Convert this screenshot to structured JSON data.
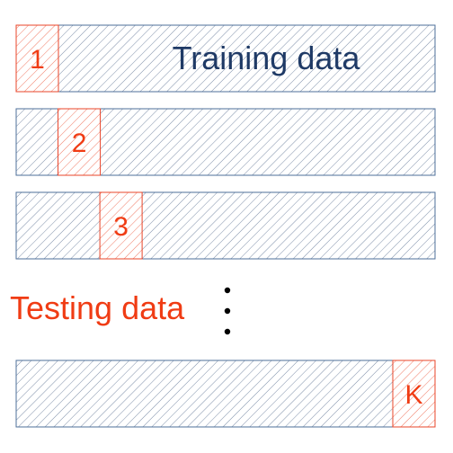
{
  "labels": {
    "training": "Training data",
    "testing": "Testing data"
  },
  "folds": [
    {
      "label": "1",
      "index": 0
    },
    {
      "label": "2",
      "index": 1
    },
    {
      "label": "3",
      "index": 2
    },
    {
      "label": "K",
      "index": 9
    }
  ],
  "ellipsis_dots": 3,
  "colors": {
    "train_stroke": "#4d6f99",
    "test_stroke": "#e8452a",
    "train_text": "#1f3a66",
    "test_text": "#f03c14"
  }
}
